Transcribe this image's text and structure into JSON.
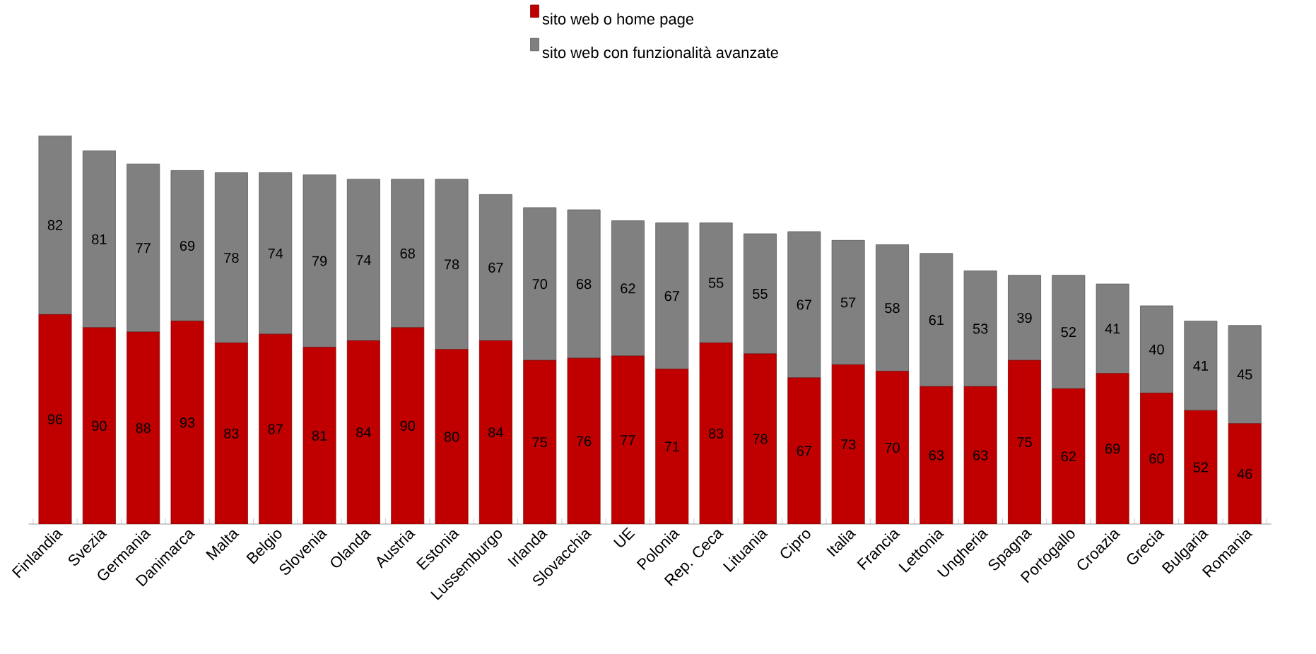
{
  "chart_data": {
    "type": "bar",
    "stacked": true,
    "legend": "top",
    "data_labels": true,
    "categories": [
      "Finlandia",
      "Svezia",
      "Germania",
      "Danimarca",
      "Malta",
      "Belgio",
      "Slovenia",
      "Olanda",
      "Austria",
      "Estonia",
      "Lussemburgo",
      "Irlanda",
      "Slovacchia",
      "UE",
      "Polonia",
      "Rep. Ceca",
      "Lituania",
      "Cipro",
      "Italia",
      "Francia",
      "Lettonia",
      "Ungheria",
      "Spagna",
      "Portogallo",
      "Croazia",
      "Grecia",
      "Bulgaria",
      "Romania"
    ],
    "series": [
      {
        "name": "sito web o home page",
        "color": "#c00000",
        "values": [
          96,
          90,
          88,
          93,
          83,
          87,
          81,
          84,
          90,
          80,
          84,
          75,
          76,
          77,
          71,
          83,
          78,
          67,
          73,
          70,
          63,
          63,
          75,
          62,
          69,
          60,
          52,
          46
        ]
      },
      {
        "name": "sito web con funzionalità avanzate",
        "color": "#808080",
        "values": [
          82,
          81,
          77,
          69,
          78,
          74,
          79,
          74,
          68,
          78,
          67,
          70,
          68,
          62,
          67,
          55,
          55,
          67,
          57,
          58,
          61,
          53,
          39,
          52,
          41,
          40,
          41,
          45
        ]
      }
    ]
  }
}
